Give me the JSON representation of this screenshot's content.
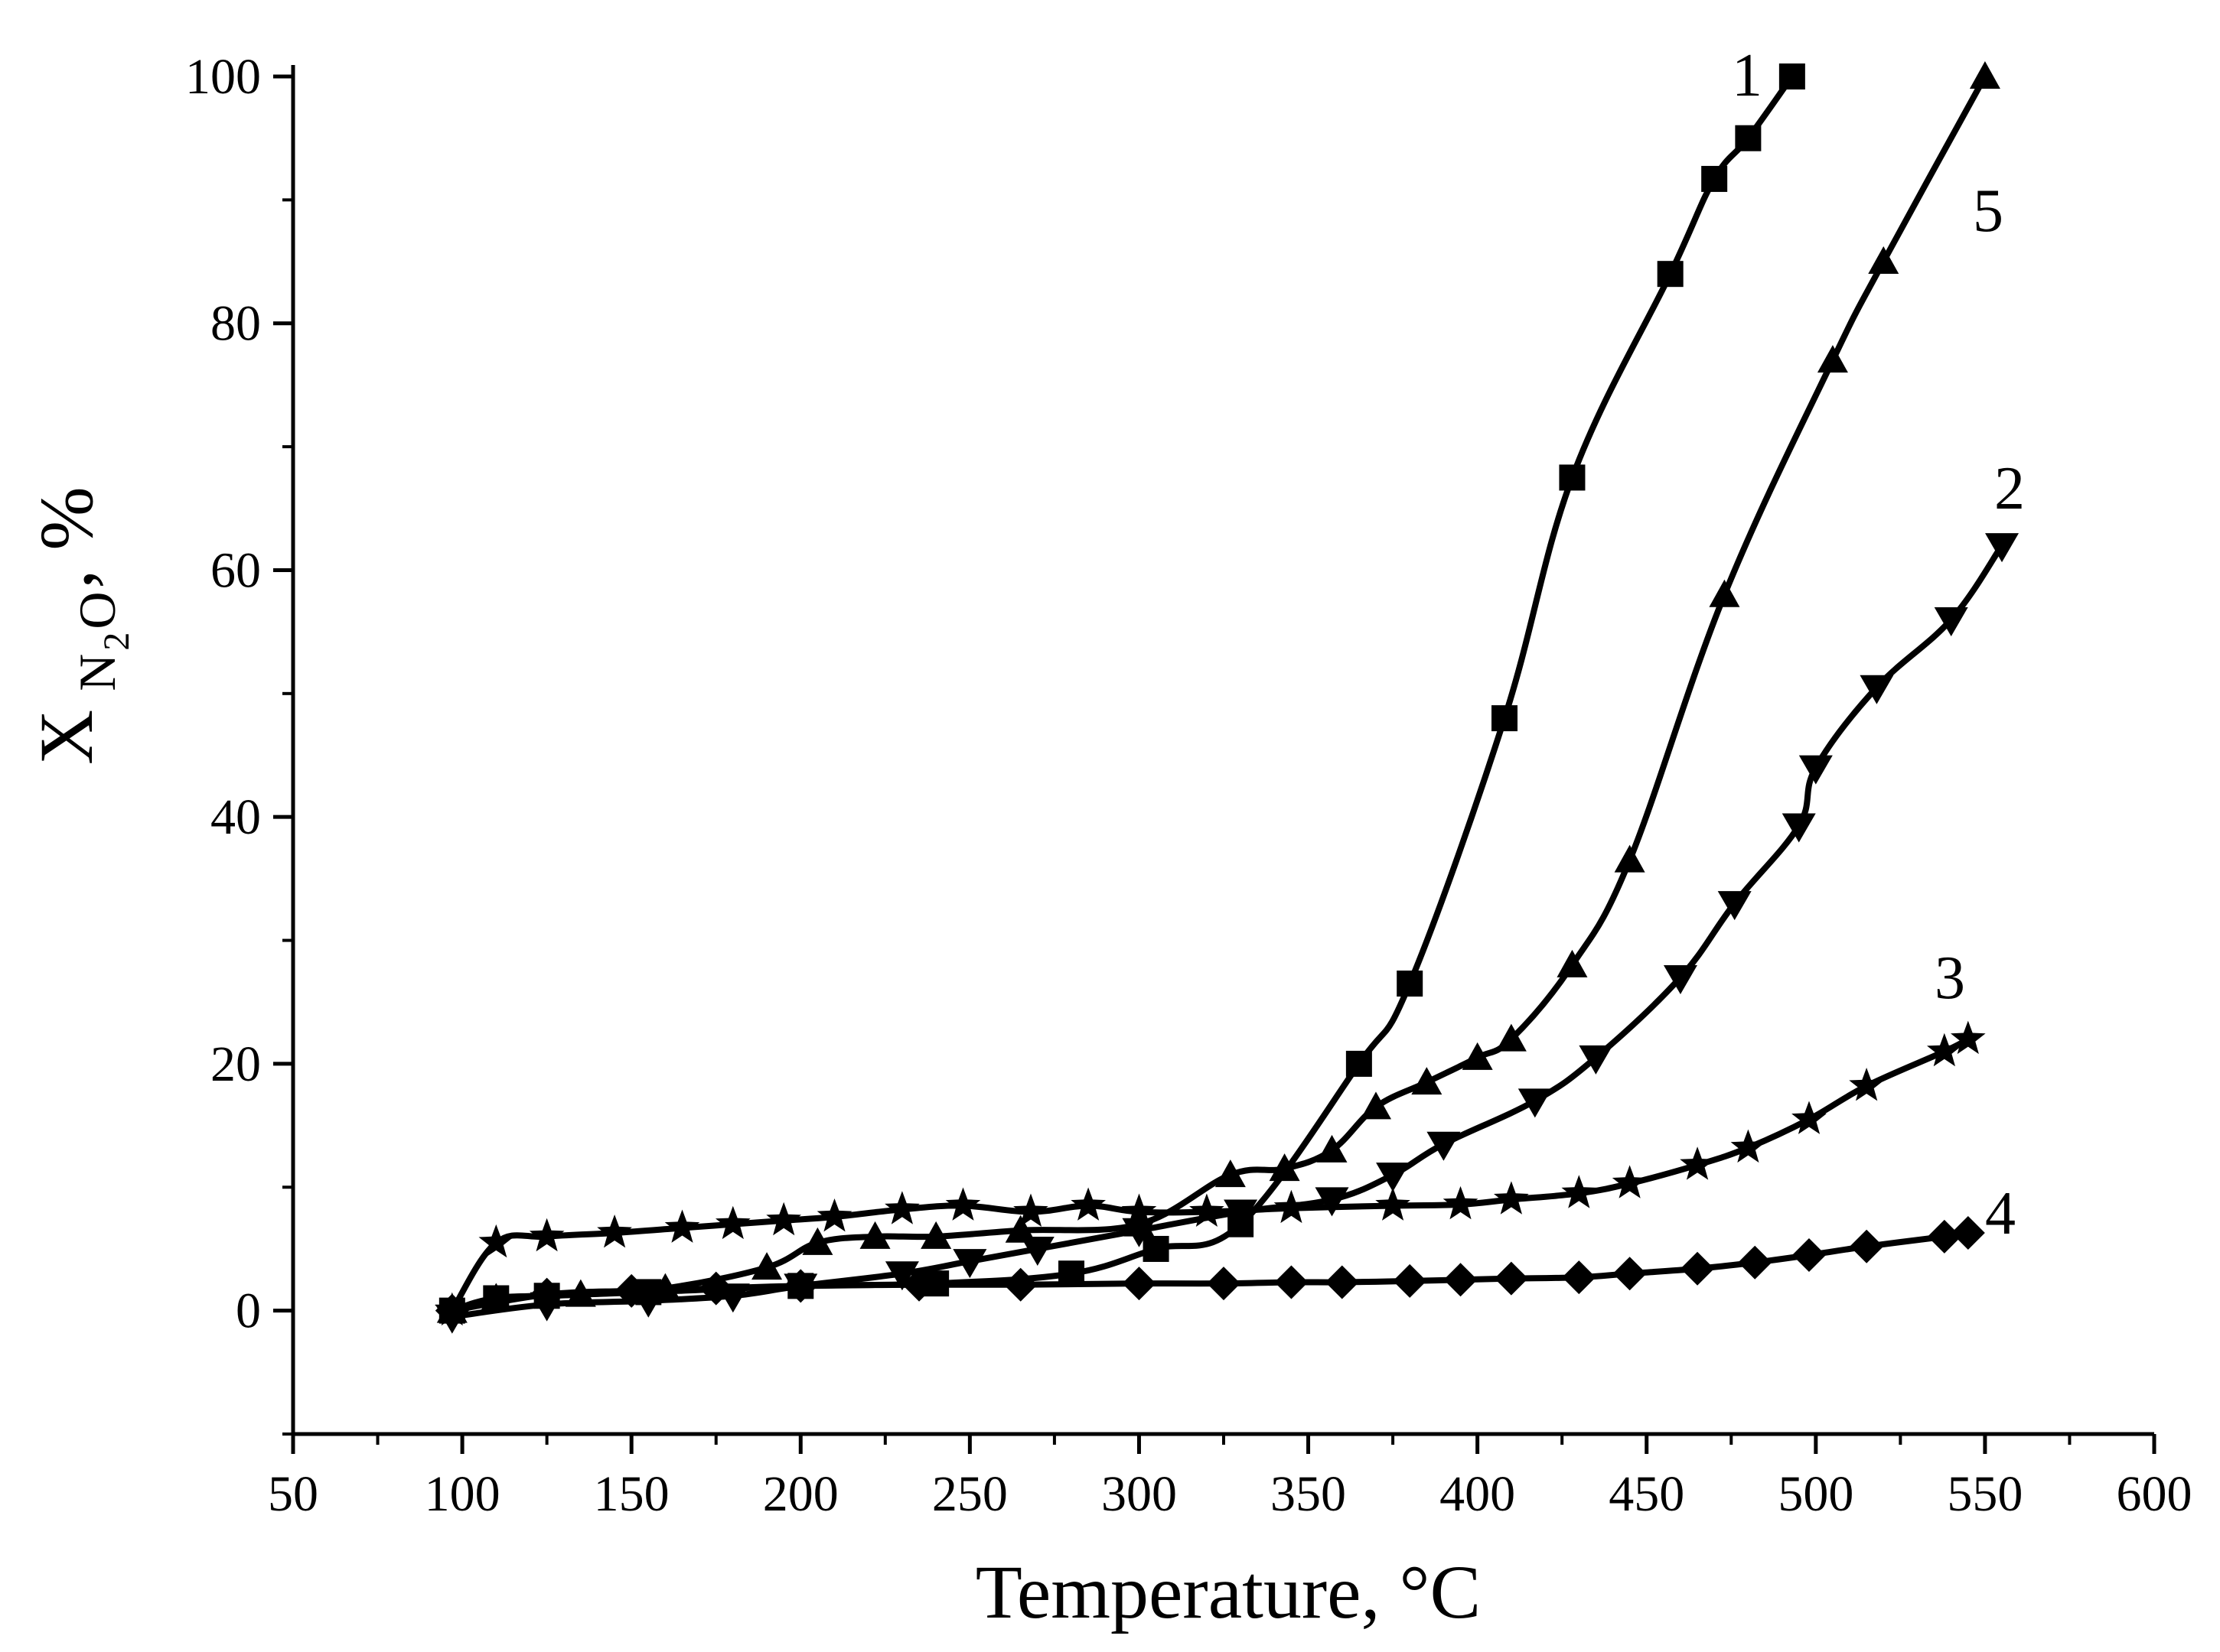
{
  "chart_data": {
    "type": "line",
    "xlabel": "Temperature, °C",
    "ylabel": {
      "main": "X",
      "sub_n": "N",
      "sub_2": "2",
      "sub_o": "O",
      "suffix": ", %"
    },
    "xlim": [
      50,
      600
    ],
    "ylim": [
      -10,
      100
    ],
    "x_ticks": [
      "50",
      "100",
      "150",
      "200",
      "250",
      "300",
      "350",
      "400",
      "450",
      "500",
      "550",
      "600"
    ],
    "y_ticks": [
      "0",
      "20",
      "40",
      "60",
      "80",
      "100"
    ],
    "y_tick_values": [
      0,
      20,
      40,
      60,
      80,
      100
    ],
    "x_tick_values": [
      50,
      100,
      150,
      200,
      250,
      300,
      350,
      400,
      450,
      500,
      550,
      600
    ],
    "line_color": "#000000",
    "series": [
      {
        "name": "1",
        "marker": "square",
        "points": [
          [
            97,
            0
          ],
          [
            110,
            1
          ],
          [
            125,
            1.2
          ],
          [
            155,
            1.5
          ],
          [
            200,
            2
          ],
          [
            240,
            2.2
          ],
          [
            280,
            3
          ],
          [
            305,
            5
          ],
          [
            330,
            7
          ],
          [
            365,
            20
          ],
          [
            380,
            26.5
          ],
          [
            408,
            48
          ],
          [
            428,
            67.5
          ],
          [
            457,
            84
          ],
          [
            470,
            91.7
          ],
          [
            480,
            95
          ],
          [
            493,
            100
          ]
        ]
      },
      {
        "name": "2",
        "marker": "triangle-down",
        "points": [
          [
            97,
            -0.5
          ],
          [
            125,
            0.5
          ],
          [
            155,
            0.8
          ],
          [
            180,
            1.2
          ],
          [
            200,
            2
          ],
          [
            230,
            3
          ],
          [
            250,
            4
          ],
          [
            270,
            5
          ],
          [
            300,
            6.5
          ],
          [
            330,
            8
          ],
          [
            357,
            9
          ],
          [
            375,
            11
          ],
          [
            390,
            13.5
          ],
          [
            417,
            17
          ],
          [
            435,
            20.5
          ],
          [
            460,
            27
          ],
          [
            476,
            33
          ],
          [
            495,
            39.3
          ],
          [
            500,
            44
          ],
          [
            518,
            50.5
          ],
          [
            540,
            56
          ],
          [
            555,
            62
          ]
        ]
      },
      {
        "name": "3",
        "marker": "star",
        "points": [
          [
            97,
            0
          ],
          [
            110,
            5.5
          ],
          [
            125,
            6
          ],
          [
            145,
            6.3
          ],
          [
            165,
            6.7
          ],
          [
            180,
            7
          ],
          [
            195,
            7.3
          ],
          [
            210,
            7.6
          ],
          [
            230,
            8.2
          ],
          [
            248,
            8.5
          ],
          [
            268,
            8
          ],
          [
            285,
            8.5
          ],
          [
            300,
            8
          ],
          [
            320,
            8
          ],
          [
            345,
            8.3
          ],
          [
            375,
            8.5
          ],
          [
            395,
            8.6
          ],
          [
            410,
            9
          ],
          [
            430,
            9.5
          ],
          [
            445,
            10.3
          ],
          [
            465,
            11.8
          ],
          [
            480,
            13.2
          ],
          [
            498,
            15.5
          ],
          [
            515,
            18.2
          ],
          [
            538,
            21
          ],
          [
            545,
            22
          ]
        ]
      },
      {
        "name": "4",
        "marker": "diamond",
        "points": [
          [
            97,
            0
          ],
          [
            125,
            1.3
          ],
          [
            150,
            1.6
          ],
          [
            175,
            1.8
          ],
          [
            200,
            2
          ],
          [
            235,
            2.1
          ],
          [
            265,
            2.1
          ],
          [
            300,
            2.2
          ],
          [
            325,
            2.2
          ],
          [
            345,
            2.3
          ],
          [
            360,
            2.3
          ],
          [
            380,
            2.4
          ],
          [
            395,
            2.5
          ],
          [
            410,
            2.6
          ],
          [
            430,
            2.7
          ],
          [
            445,
            3
          ],
          [
            465,
            3.4
          ],
          [
            482,
            3.9
          ],
          [
            498,
            4.5
          ],
          [
            515,
            5.2
          ],
          [
            538,
            6
          ],
          [
            545,
            6.3
          ]
        ]
      },
      {
        "name": "5",
        "marker": "triangle-up",
        "points": [
          [
            97,
            0
          ],
          [
            110,
            1
          ],
          [
            135,
            1.3
          ],
          [
            160,
            1.8
          ],
          [
            190,
            3.5
          ],
          [
            205,
            5.5
          ],
          [
            222,
            6
          ],
          [
            240,
            6
          ],
          [
            265,
            6.5
          ],
          [
            300,
            7
          ],
          [
            327,
            11
          ],
          [
            343,
            11.5
          ],
          [
            357,
            13
          ],
          [
            370,
            16.5
          ],
          [
            385,
            18.5
          ],
          [
            400,
            20.5
          ],
          [
            410,
            22
          ],
          [
            428,
            28
          ],
          [
            445,
            36.5
          ],
          [
            473,
            58
          ],
          [
            505,
            77
          ],
          [
            520,
            85
          ],
          [
            550,
            100
          ]
        ]
      }
    ],
    "series_labels": [
      {
        "text": "1",
        "x": 0,
        "y": 0
      },
      {
        "text": "5",
        "x": 0,
        "y": 0
      },
      {
        "text": "2",
        "x": 0,
        "y": 0
      },
      {
        "text": "3",
        "x": 0,
        "y": 0
      },
      {
        "text": "4",
        "x": 0,
        "y": 0
      }
    ]
  }
}
